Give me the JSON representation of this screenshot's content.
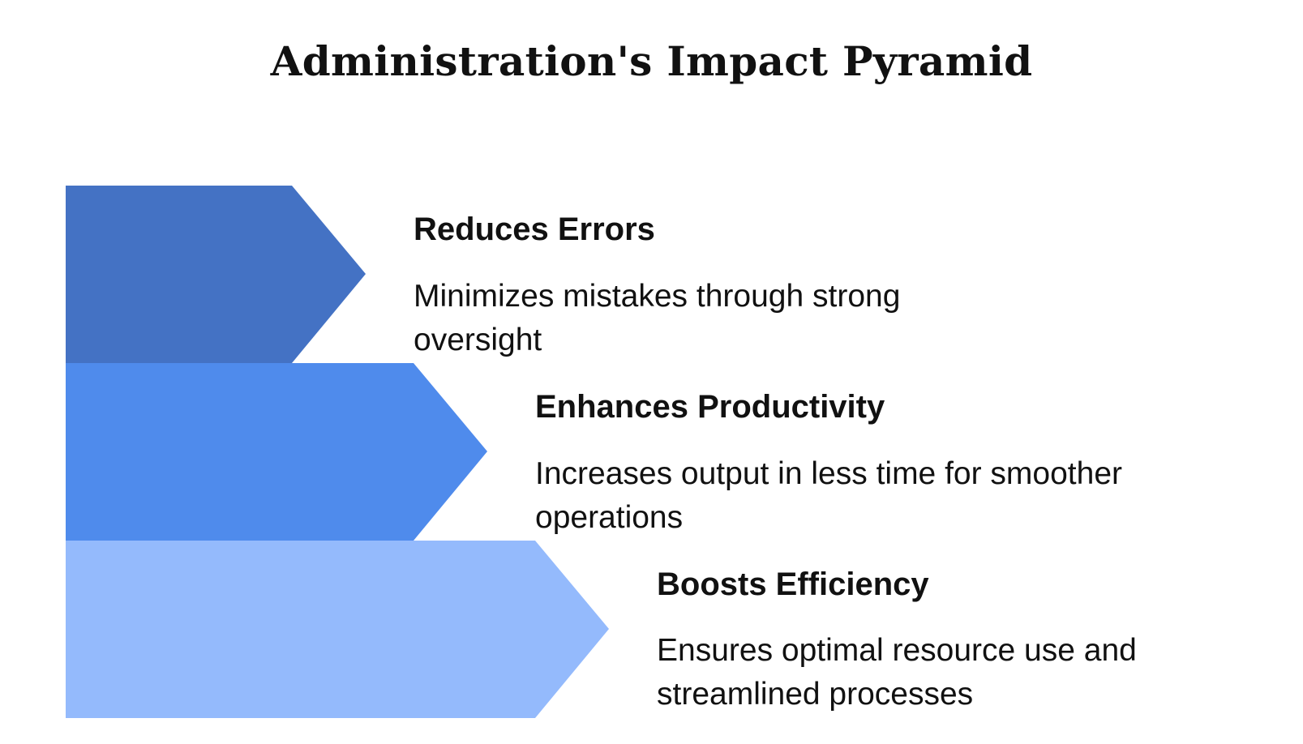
{
  "title": "Administration's Impact Pyramid",
  "levels": [
    {
      "heading": "Reduces Errors",
      "description": "Minimizes mistakes through strong oversight",
      "color": "#4472C4"
    },
    {
      "heading": "Enhances Productivity",
      "description": "Increases output in less time for smoother operations",
      "color": "#4F8BEC"
    },
    {
      "heading": "Boosts Efficiency",
      "description": "Ensures optimal resource use and streamlined processes",
      "color": "#94BAFC"
    }
  ]
}
